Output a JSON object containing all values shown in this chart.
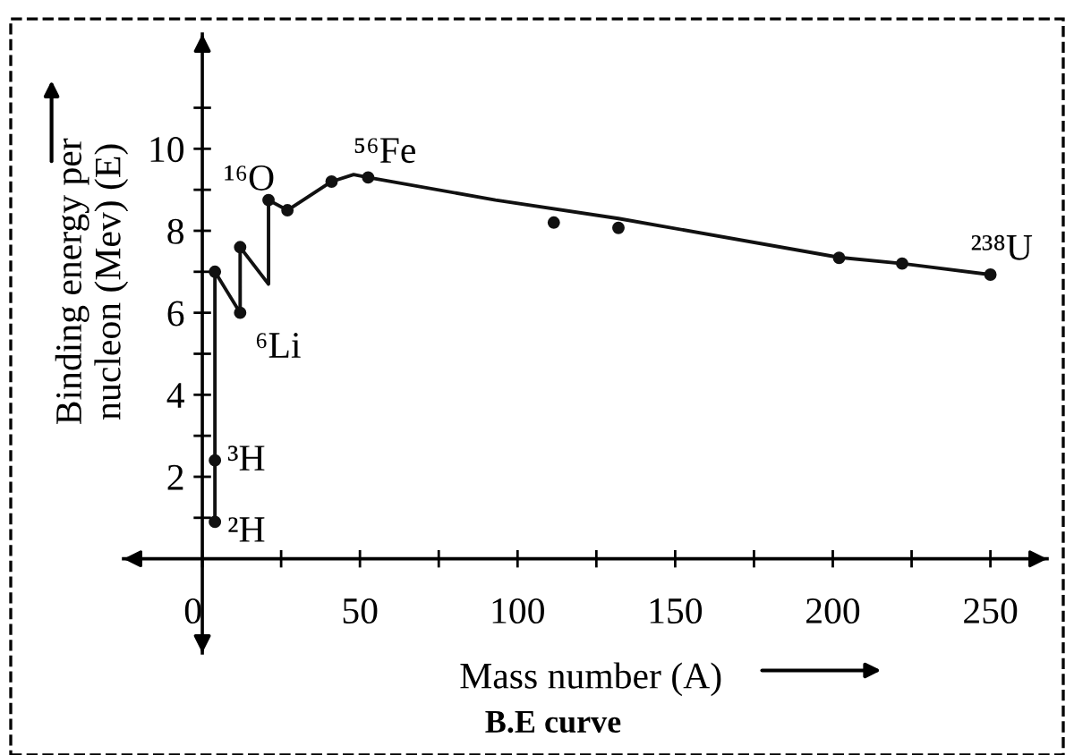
{
  "chart_data": {
    "type": "line",
    "title": "B.E curve",
    "xlabel": "Mass number (A)",
    "ylabel": "Binding energy per\nnucleon (Mev) (E)",
    "series": [
      {
        "color": "#111111",
        "marker": "none",
        "x": [
          4,
          4,
          4,
          12,
          12,
          21,
          21,
          27,
          41,
          48,
          52.6,
          93,
          132,
          202,
          222,
          250
        ],
        "values": [
          0.9,
          2.4,
          7.0,
          6.0,
          7.6,
          6.7,
          8.75,
          8.5,
          9.2,
          9.37,
          9.3,
          8.75,
          8.3,
          7.35,
          7.2,
          6.93
        ]
      },
      {
        "type": "scatter",
        "color": "#111111",
        "marker": "circle",
        "x": [
          4,
          4,
          4,
          12,
          12,
          21,
          27,
          41,
          52.6,
          111.5,
          132,
          202,
          222,
          250
        ],
        "values": [
          0.9,
          2.4,
          7.0,
          6.0,
          7.6,
          8.75,
          8.5,
          9.2,
          9.3,
          8.2,
          8.07,
          7.34,
          7.2,
          6.93
        ]
      }
    ],
    "annotations": [
      {
        "text": "²H",
        "x": 4,
        "y": 0.9
      },
      {
        "text": "³H",
        "x": 4,
        "y": 2.4
      },
      {
        "text": "⁶Li",
        "x": 12,
        "y": 6.0
      },
      {
        "text": "¹⁶O",
        "x": 21,
        "y": 8.75
      },
      {
        "text": "⁵⁶Fe",
        "x": 52.6,
        "y": 9.3
      },
      {
        "text": "²³⁸U",
        "x": 250,
        "y": 6.93
      }
    ],
    "xlim": [
      -25,
      268
    ],
    "ylim": [
      -2.3,
      12.8
    ],
    "xticks": [
      0,
      {
        "value": 25,
        "label": null
      },
      50,
      {
        "value": 75,
        "label": null
      },
      100,
      {
        "value": 125,
        "label": null
      },
      150,
      {
        "value": 175,
        "label": null
      },
      200,
      {
        "value": 225,
        "label": null
      },
      250
    ],
    "yticks": [
      {
        "value": 1,
        "label": null
      },
      2,
      {
        "value": 3,
        "label": null
      },
      4,
      {
        "value": 5,
        "label": null
      },
      6,
      {
        "value": 7,
        "label": null
      },
      8,
      {
        "value": 9,
        "label": null
      },
      10,
      {
        "value": 11,
        "label": null
      }
    ],
    "grid": false
  }
}
